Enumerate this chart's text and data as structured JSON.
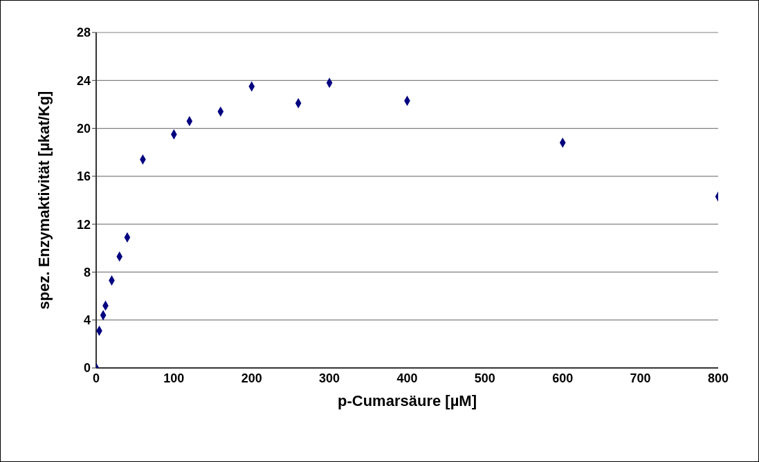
{
  "chart_data": {
    "type": "scatter",
    "xlabel": "p-Cumarsäure [µM]",
    "ylabel": "spez. Enzymaktivität [µkat/Kg]",
    "x": [
      0,
      4,
      9,
      12,
      20,
      30,
      40,
      60,
      100,
      120,
      160,
      200,
      260,
      300,
      400,
      600,
      800
    ],
    "series": [
      {
        "color": "#000080",
        "values": [
          0,
          3.1,
          4.4,
          5.2,
          7.3,
          9.3,
          10.9,
          17.4,
          19.5,
          20.6,
          21.4,
          23.5,
          22.1,
          23.8,
          22.3,
          18.8,
          14.3
        ]
      }
    ],
    "xlim": [
      0,
      800
    ],
    "xticks": [
      0,
      100,
      200,
      300,
      400,
      500,
      600,
      700,
      800
    ],
    "ylim": [
      0,
      28
    ],
    "yticks": [
      0,
      4,
      8,
      12,
      16,
      20,
      24,
      28
    ],
    "grid": "y",
    "marker": "diamond",
    "legend": false
  }
}
